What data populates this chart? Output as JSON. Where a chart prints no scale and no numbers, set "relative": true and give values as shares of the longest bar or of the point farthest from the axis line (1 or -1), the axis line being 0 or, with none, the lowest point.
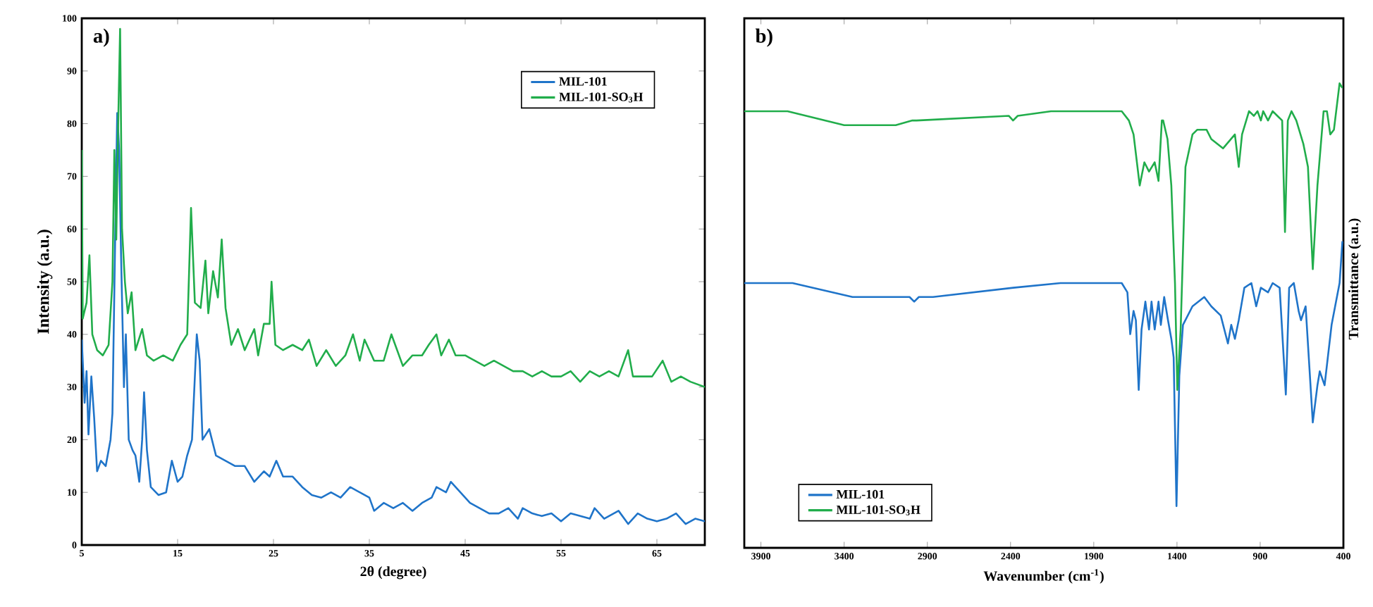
{
  "chart_data": [
    {
      "type": "line",
      "title": "a)",
      "xlabel": "2θ (degree)",
      "ylabel": "Intensity (a.u.)",
      "xlim": [
        5,
        70
      ],
      "xticks": [
        5,
        15,
        25,
        35,
        45,
        55,
        65
      ],
      "ylim": [
        0,
        100
      ],
      "yticks": [
        0,
        10,
        20,
        30,
        40,
        50,
        60,
        70,
        80,
        90,
        100
      ],
      "legend": "top right",
      "series": [
        {
          "name": "MIL-101",
          "color": "#1f74c9",
          "x": [
            5,
            5.3,
            5.5,
            5.7,
            6,
            6.3,
            6.6,
            7,
            7.5,
            8,
            8.2,
            8.5,
            8.7,
            8.9,
            9.1,
            9.4,
            9.6,
            9.9,
            10.3,
            10.6,
            11,
            11.3,
            11.5,
            11.8,
            12.2,
            13,
            13.8,
            14.4,
            15,
            15.5,
            16,
            16.5,
            17,
            17.3,
            17.6,
            18.3,
            19,
            20,
            21,
            22,
            23,
            24,
            24.6,
            25.3,
            26,
            27,
            28,
            29,
            30,
            31,
            32,
            33,
            34,
            35,
            35.5,
            36.5,
            37.5,
            38.5,
            39.5,
            40.5,
            41.5,
            42,
            43,
            43.5,
            44.5,
            45.5,
            46.5,
            47.5,
            48.5,
            49.5,
            50.5,
            51,
            52,
            53,
            54,
            55,
            56,
            57,
            58,
            58.5,
            59.5,
            61,
            62,
            63,
            64,
            65,
            66,
            67,
            68,
            69,
            70
          ],
          "values": [
            39,
            27,
            33,
            21,
            32,
            24,
            14,
            16,
            15,
            20,
            25,
            60,
            82,
            75,
            55,
            30,
            40,
            20,
            18,
            17,
            12,
            20,
            29,
            18,
            11,
            9.5,
            10,
            16,
            12,
            13,
            17,
            20,
            40,
            35,
            20,
            22,
            17,
            16,
            15,
            15,
            12,
            14,
            13,
            16,
            13,
            13,
            11,
            9.5,
            9,
            10,
            9,
            11,
            10,
            9,
            6.5,
            8,
            7,
            8,
            6.5,
            8,
            9,
            11,
            10,
            12,
            10,
            8,
            7,
            6,
            6,
            7,
            5,
            7,
            6,
            5.5,
            6,
            4.5,
            6,
            5.5,
            5,
            7,
            5,
            6.5,
            4,
            6,
            5,
            4.5,
            5,
            6,
            4,
            5,
            4.5
          ]
        },
        {
          "name": "MIL-101-SO$_{3}$H",
          "color": "#21ad4b",
          "x": [
            5,
            5.1,
            5.5,
            5.8,
            6.1,
            6.6,
            7.2,
            7.8,
            8.2,
            8.4,
            8.6,
            8.8,
            9,
            9.2,
            9.5,
            9.8,
            10.2,
            10.6,
            11.3,
            11.8,
            12.5,
            13.5,
            14.5,
            15.3,
            16,
            16.4,
            16.8,
            17.4,
            17.9,
            18.2,
            18.7,
            19.2,
            19.6,
            20,
            20.6,
            21.3,
            22,
            23,
            23.4,
            24,
            24.6,
            24.8,
            25.2,
            26,
            27,
            28,
            28.7,
            29.5,
            30.5,
            31.5,
            32.5,
            33.3,
            34,
            34.5,
            35.5,
            36.5,
            37.3,
            38.5,
            39.5,
            40.5,
            41.2,
            42,
            42.5,
            43.3,
            44,
            45,
            46,
            47,
            48,
            49,
            50,
            51,
            52,
            53,
            54,
            55,
            56,
            57,
            58,
            59,
            60,
            61,
            62,
            62.5,
            63.5,
            64.5,
            65.6,
            66.5,
            67.5,
            68.5,
            70
          ],
          "values": [
            75,
            43,
            46,
            55,
            40,
            37,
            36,
            38,
            50,
            75,
            58,
            80,
            98,
            60,
            50,
            44,
            48,
            37,
            41,
            36,
            35,
            36,
            35,
            38,
            40,
            64,
            46,
            45,
            54,
            44,
            52,
            47,
            58,
            45,
            38,
            41,
            37,
            41,
            36,
            42,
            42,
            50,
            38,
            37,
            38,
            37,
            39,
            34,
            37,
            34,
            36,
            40,
            35,
            39,
            35,
            35,
            40,
            34,
            36,
            36,
            38,
            40,
            36,
            39,
            36,
            36,
            35,
            34,
            35,
            34,
            33,
            33,
            32,
            33,
            32,
            32,
            33,
            31,
            33,
            32,
            33,
            32,
            37,
            32,
            32,
            32,
            35,
            31,
            32,
            31,
            30
          ]
        }
      ]
    },
    {
      "type": "line",
      "title": "b)",
      "xlabel": "Wavenumber (cm$^{-1}$)",
      "ylabel": "Transmittance (a.u.)",
      "relative": true,
      "tick_labels": "x",
      "xlim": [
        4000,
        400
      ],
      "xticks": [
        3900,
        3400,
        2900,
        2400,
        1900,
        1400,
        900,
        400
      ],
      "legend": "bottom left",
      "series": [
        {
          "name": "MIL-101",
          "color": "#1f74c9",
          "x": [
            4000,
            3710,
            3350,
            3007,
            2979,
            2951,
            2866,
            2384,
            2100,
            1732,
            1698,
            1681,
            1661,
            1647,
            1630,
            1613,
            1590,
            1568,
            1553,
            1534,
            1511,
            1497,
            1477,
            1454,
            1434,
            1420,
            1403,
            1386,
            1364,
            1307,
            1236,
            1194,
            1137,
            1094,
            1074,
            1052,
            1029,
            995,
            953,
            924,
            896,
            853,
            825,
            783,
            746,
            726,
            698,
            669,
            655,
            627,
            584,
            556,
            542,
            513,
            471,
            423,
            406
          ],
          "values": [
            0.57,
            0.57,
            0.54,
            0.54,
            0.53,
            0.54,
            0.54,
            0.56,
            0.57,
            0.57,
            0.55,
            0.46,
            0.51,
            0.49,
            0.34,
            0.47,
            0.53,
            0.47,
            0.53,
            0.47,
            0.53,
            0.48,
            0.54,
            0.49,
            0.45,
            0.41,
            0.09,
            0.37,
            0.48,
            0.52,
            0.54,
            0.52,
            0.5,
            0.44,
            0.48,
            0.45,
            0.49,
            0.56,
            0.57,
            0.52,
            0.56,
            0.55,
            0.57,
            0.56,
            0.33,
            0.56,
            0.57,
            0.51,
            0.49,
            0.52,
            0.27,
            0.35,
            0.38,
            0.35,
            0.48,
            0.57,
            0.66
          ]
        },
        {
          "name": "MIL-101-SO$_{3}$H",
          "color": "#21ad4b",
          "x": [
            4000,
            3740,
            3400,
            3090,
            2990,
            2965,
            2410,
            2385,
            2357,
            2157,
            1760,
            1732,
            1689,
            1661,
            1624,
            1596,
            1568,
            1534,
            1511,
            1491,
            1483,
            1457,
            1434,
            1412,
            1398,
            1378,
            1349,
            1307,
            1279,
            1222,
            1194,
            1123,
            1052,
            1029,
            1009,
            967,
            938,
            916,
            896,
            882,
            853,
            825,
            797,
            768,
            751,
            734,
            712,
            683,
            641,
            613,
            584,
            556,
            519,
            499,
            479,
            457,
            423,
            406
          ],
          "values": [
            0.94,
            0.94,
            0.91,
            0.91,
            0.92,
            0.92,
            0.93,
            0.92,
            0.93,
            0.94,
            0.94,
            0.94,
            0.92,
            0.89,
            0.78,
            0.83,
            0.81,
            0.83,
            0.79,
            0.92,
            0.92,
            0.88,
            0.78,
            0.57,
            0.34,
            0.47,
            0.82,
            0.89,
            0.9,
            0.9,
            0.88,
            0.86,
            0.89,
            0.82,
            0.89,
            0.94,
            0.93,
            0.94,
            0.92,
            0.94,
            0.92,
            0.94,
            0.93,
            0.92,
            0.68,
            0.92,
            0.94,
            0.92,
            0.87,
            0.82,
            0.6,
            0.78,
            0.94,
            0.94,
            0.89,
            0.9,
            1.0,
            0.99
          ]
        }
      ]
    }
  ]
}
